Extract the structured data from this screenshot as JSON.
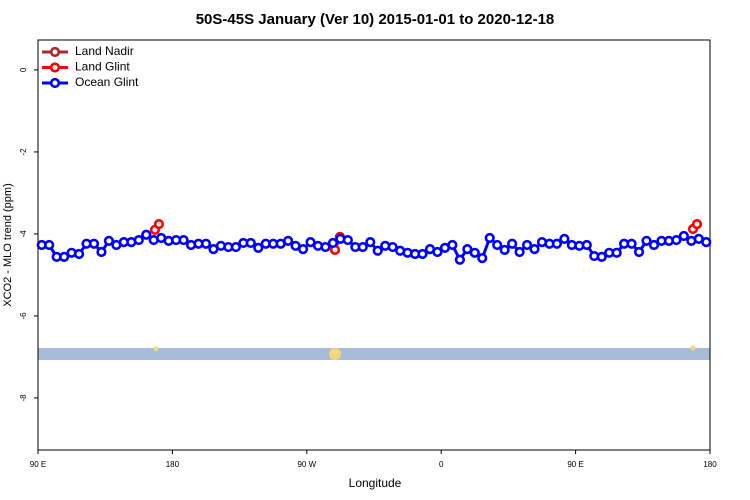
{
  "chart_data": {
    "type": "line",
    "title": "50S-45S January (Ver 10)   2015-01-01 to 2020-12-18",
    "x_label": "Longitude",
    "y_label": "XCO2 - MLO trend (ppm)",
    "xlim": [
      90,
      540
    ],
    "xticks": [
      {
        "value": 90,
        "label": "90 E"
      },
      {
        "value": 180,
        "label": "180"
      },
      {
        "value": 270,
        "label": "90 W"
      },
      {
        "value": 360,
        "label": "0"
      },
      {
        "value": 450,
        "label": "90 E"
      },
      {
        "value": 540,
        "label": "180"
      }
    ],
    "ylim": [
      -9.27,
      0.73
    ],
    "yticks": [
      0,
      -2,
      -4,
      -6,
      -8
    ],
    "legend": "top-left",
    "series": [
      {
        "name": "Land Nadir",
        "color": "#a52a2a",
        "x": [],
        "values": []
      },
      {
        "name": "Land Glint",
        "color": "#ff0000",
        "x": [
          168.3,
          171.0,
          null,
          288.9,
          292.2,
          null,
          528.6,
          531.3
        ],
        "values": [
          -3.9,
          -3.76,
          null,
          -4.39,
          -4.07,
          null,
          -3.88,
          -3.76
        ]
      },
      {
        "name": "Ocean Glint",
        "color": "#0000ff",
        "x": [
          92.5,
          97.5,
          102.5,
          107.5,
          112.5,
          117.5,
          122.5,
          127.5,
          132.5,
          137.5,
          142.5,
          147.5,
          152.5,
          157.5,
          162.5,
          167.5,
          172.5,
          177.5,
          182.5,
          187.5,
          192.5,
          197.5,
          202.5,
          207.5,
          212.5,
          217.5,
          222.5,
          227.5,
          232.5,
          237.5,
          242.5,
          247.5,
          252.5,
          257.5,
          262.5,
          267.5,
          272.5,
          277.5,
          282.5,
          287.5,
          292.5,
          297.5,
          302.5,
          307.5,
          312.5,
          317.5,
          322.5,
          327.5,
          332.5,
          337.5,
          342.5,
          347.5,
          352.5,
          357.5,
          362.5,
          367.5,
          372.5,
          377.5,
          382.5,
          387.5,
          392.5,
          397.5,
          402.5,
          407.5,
          412.5,
          417.5,
          422.5,
          427.5,
          432.5,
          437.5,
          442.5,
          447.5,
          452.5,
          457.5,
          462.5,
          467.5,
          472.5,
          477.5,
          482.5,
          487.5,
          492.5,
          497.5,
          502.5,
          507.5,
          512.5,
          517.5,
          522.5,
          527.5,
          532.5,
          537.5
        ],
        "values": [
          -4.27,
          -4.27,
          -4.56,
          -4.56,
          -4.46,
          -4.49,
          -4.24,
          -4.24,
          -4.44,
          -4.17,
          -4.27,
          -4.2,
          -4.2,
          -4.15,
          -4.02,
          -4.15,
          -4.1,
          -4.17,
          -4.15,
          -4.15,
          -4.27,
          -4.24,
          -4.24,
          -4.37,
          -4.29,
          -4.32,
          -4.32,
          -4.22,
          -4.22,
          -4.34,
          -4.24,
          -4.24,
          -4.24,
          -4.17,
          -4.29,
          -4.37,
          -4.2,
          -4.29,
          -4.32,
          -4.22,
          -4.12,
          -4.15,
          -4.32,
          -4.32,
          -4.2,
          -4.41,
          -4.29,
          -4.32,
          -4.41,
          -4.46,
          -4.49,
          -4.49,
          -4.37,
          -4.44,
          -4.34,
          -4.27,
          -4.63,
          -4.37,
          -4.46,
          -4.59,
          -4.1,
          -4.27,
          -4.39,
          -4.24,
          -4.44,
          -4.27,
          -4.37,
          -4.2,
          -4.24,
          -4.24,
          -4.12,
          -4.27,
          -4.29,
          -4.27,
          -4.54,
          -4.56,
          -4.46,
          -4.46,
          -4.24,
          -4.24,
          -4.44,
          -4.17,
          -4.27,
          -4.17,
          -4.17,
          -4.15,
          -4.05,
          -4.17,
          -4.12,
          -4.2
        ]
      }
    ]
  }
}
